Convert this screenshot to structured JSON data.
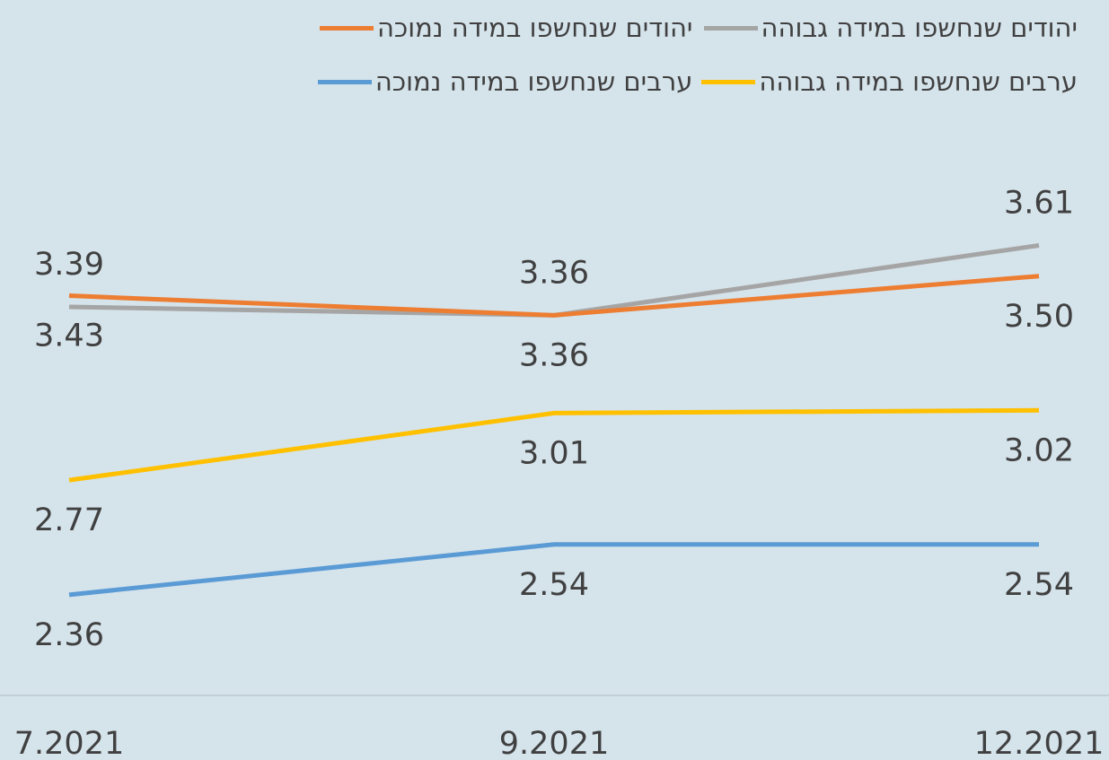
{
  "chart_data": {
    "type": "line",
    "categories": [
      "7.2021",
      "9.2021",
      "12.2021"
    ],
    "ylim": [
      2,
      4
    ],
    "series": [
      {
        "name": "יהודים שנחשפו במידה גבוהה",
        "color": "#a5a5a5",
        "values": [
          3.39,
          3.36,
          3.61
        ],
        "value_labels": [
          "3.39",
          "3.36",
          "3.61"
        ]
      },
      {
        "name": "יהודים שנחשפו במידה נמוכה",
        "color": "#ed7d31",
        "values": [
          3.43,
          3.36,
          3.5
        ],
        "value_labels": [
          "3.43",
          "3.36",
          "3.50"
        ]
      },
      {
        "name": "ערבים שנחשפו במידה גבוהה",
        "color": "#ffc000",
        "values": [
          2.77,
          3.01,
          3.02
        ],
        "value_labels": [
          "2.77",
          "3.01",
          "3.02"
        ]
      },
      {
        "name": "ערבים שנחשפו במידה נמוכה",
        "color": "#5b9bd5",
        "values": [
          2.36,
          2.54,
          2.54
        ],
        "value_labels": [
          "2.36",
          "2.54",
          "2.54"
        ]
      }
    ]
  }
}
